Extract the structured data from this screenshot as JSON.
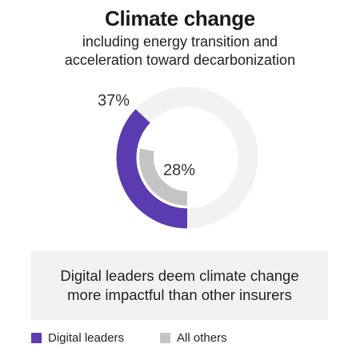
{
  "title": "Climate change",
  "subtitle_line1": "including energy transition and",
  "subtitle_line2": "acceleration toward decarbonization",
  "callout": "Digital leaders deem climate change more impactful than other insurers",
  "colors": {
    "digital_leaders": "#5b3bb0",
    "all_others": "#c4c4c4",
    "track": "#f2f2f2"
  },
  "chart_data": {
    "type": "pie",
    "subtype": "radial-bar",
    "title": "Climate change",
    "series": [
      {
        "name": "Digital leaders",
        "value": 37,
        "label": "37%"
      },
      {
        "name": "All others",
        "value": 28,
        "label": "28%"
      }
    ],
    "unit": "%",
    "max": 100,
    "legend": "bottom-left"
  }
}
